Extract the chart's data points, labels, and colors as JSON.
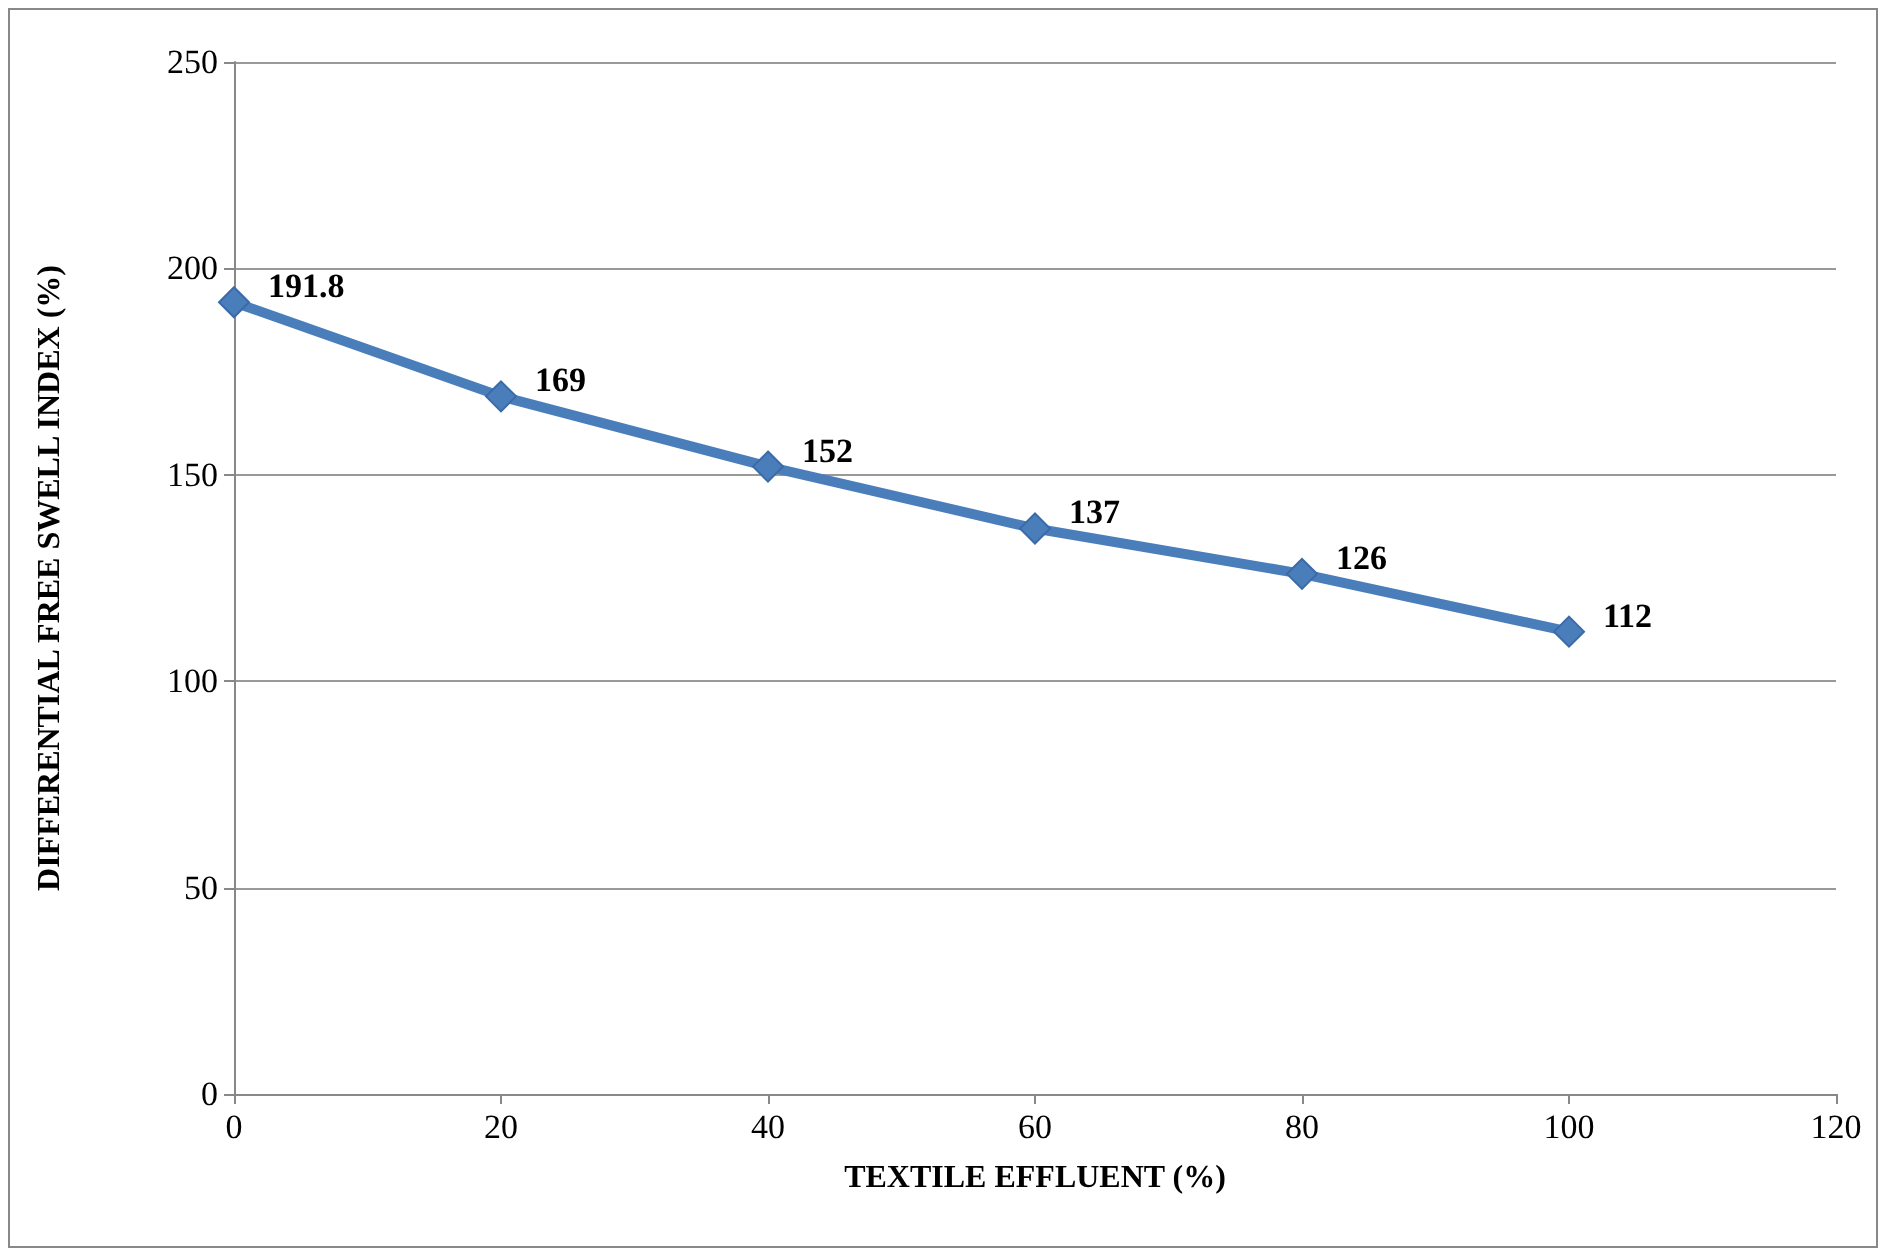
{
  "chart_data": {
    "type": "line",
    "xlabel": "TEXTILE EFFLUENT (%)",
    "ylabel": "DIFFERENTIAL FREE SWELL INDEX (%)",
    "x": [
      0,
      20,
      40,
      60,
      80,
      100
    ],
    "series": [
      {
        "color": "#4a7ebb",
        "values": [
          191.8,
          169,
          152,
          137,
          126,
          112
        ]
      }
    ],
    "xlim": [
      0,
      120
    ],
    "xticks": [
      0,
      20,
      40,
      60,
      80,
      100,
      120
    ],
    "ylim": [
      0,
      250
    ],
    "yticks": [
      0,
      50,
      100,
      150,
      200,
      250
    ],
    "grid": "y",
    "marker": "diamond",
    "line_style": "solid",
    "data_labels": true
  }
}
